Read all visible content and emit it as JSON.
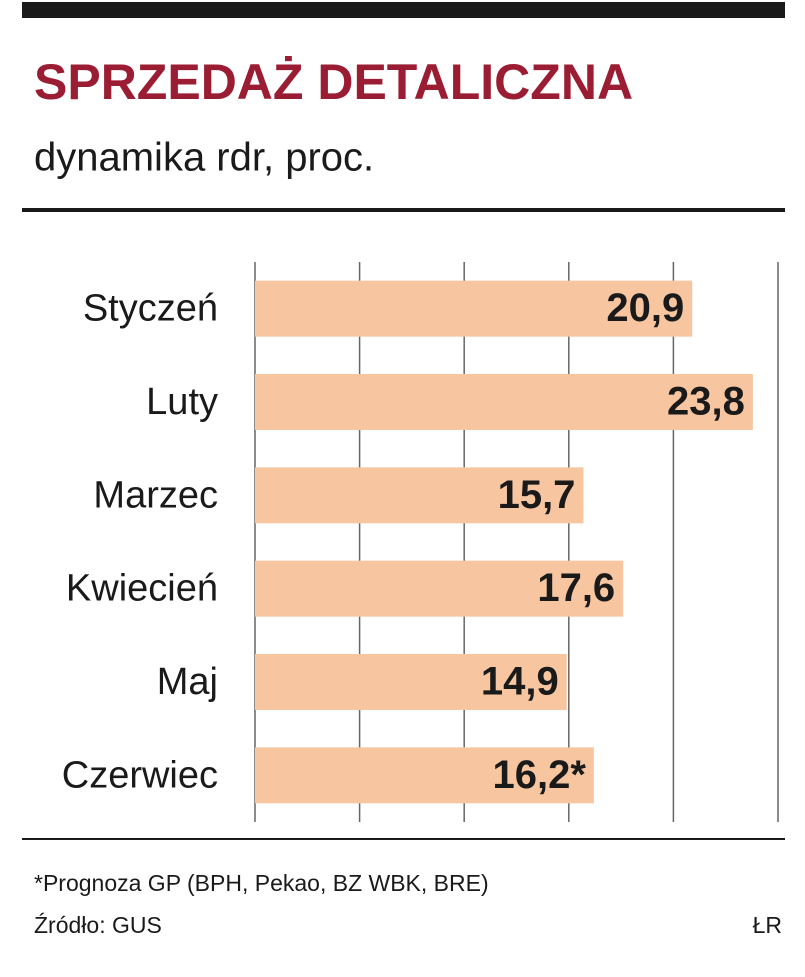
{
  "chart_data": {
    "type": "bar",
    "orientation": "horizontal",
    "title": "SPRZEDAŻ DETALICZNA",
    "subtitle": "dynamika rdr, proc.",
    "categories": [
      "Styczeń",
      "Luty",
      "Marzec",
      "Kwiecień",
      "Maj",
      "Czerwiec"
    ],
    "values": [
      20.9,
      23.8,
      15.7,
      17.6,
      14.9,
      16.2
    ],
    "value_labels": [
      "20,9",
      "23,8",
      "15,7",
      "17,6",
      "14,9",
      "16,2*"
    ],
    "color": "#f7c6a0",
    "xlim": [
      0,
      25
    ],
    "xticks": [
      0,
      5,
      10,
      15,
      20,
      25
    ],
    "grid": true,
    "footnote": "*Prognoza GP (BPH, Pekao, BZ WBK, BRE)",
    "source": "Źródło: GUS",
    "credit": "ŁR"
  }
}
